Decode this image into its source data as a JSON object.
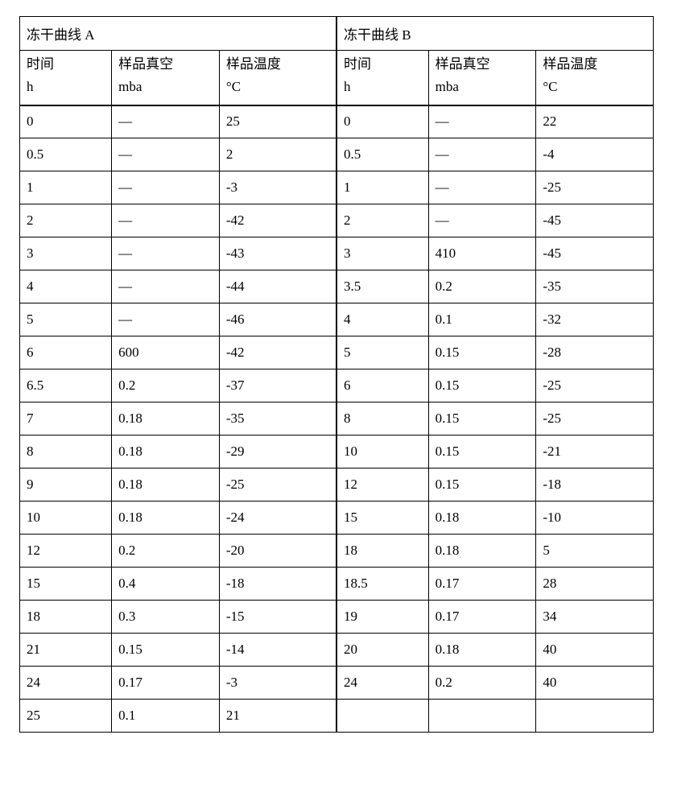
{
  "table": {
    "sectionA": {
      "title": "冻干曲线 A"
    },
    "sectionB": {
      "title": "冻干曲线 B"
    },
    "headers": {
      "time_label": "时间",
      "time_unit": "h",
      "vacuum_label": "样品真空",
      "vacuum_unit": "mba",
      "temp_label": "样品温度",
      "temp_unit": "°C"
    },
    "rows": [
      {
        "a_time": "0",
        "a_vac": "—",
        "a_temp": "25",
        "b_time": "0",
        "b_vac": "—",
        "b_temp": "22"
      },
      {
        "a_time": "0.5",
        "a_vac": "—",
        "a_temp": "2",
        "b_time": "0.5",
        "b_vac": "—",
        "b_temp": "-4"
      },
      {
        "a_time": "1",
        "a_vac": "—",
        "a_temp": "-3",
        "b_time": "1",
        "b_vac": "—",
        "b_temp": "-25"
      },
      {
        "a_time": "2",
        "a_vac": "—",
        "a_temp": "-42",
        "b_time": "2",
        "b_vac": "—",
        "b_temp": "-45"
      },
      {
        "a_time": "3",
        "a_vac": "—",
        "a_temp": "-43",
        "b_time": "3",
        "b_vac": "410",
        "b_temp": "-45"
      },
      {
        "a_time": "4",
        "a_vac": "—",
        "a_temp": "-44",
        "b_time": "3.5",
        "b_vac": "0.2",
        "b_temp": "-35"
      },
      {
        "a_time": "5",
        "a_vac": "—",
        "a_temp": "-46",
        "b_time": "4",
        "b_vac": "0.1",
        "b_temp": "-32"
      },
      {
        "a_time": "6",
        "a_vac": "600",
        "a_temp": "-42",
        "b_time": "5",
        "b_vac": "0.15",
        "b_temp": "-28"
      },
      {
        "a_time": "6.5",
        "a_vac": "0.2",
        "a_temp": "-37",
        "b_time": "6",
        "b_vac": "0.15",
        "b_temp": "-25"
      },
      {
        "a_time": "7",
        "a_vac": "0.18",
        "a_temp": "-35",
        "b_time": "8",
        "b_vac": "0.15",
        "b_temp": "-25"
      },
      {
        "a_time": "8",
        "a_vac": "0.18",
        "a_temp": "-29",
        "b_time": "10",
        "b_vac": "0.15",
        "b_temp": "-21"
      },
      {
        "a_time": "9",
        "a_vac": "0.18",
        "a_temp": "-25",
        "b_time": "12",
        "b_vac": "0.15",
        "b_temp": "-18"
      },
      {
        "a_time": "10",
        "a_vac": "0.18",
        "a_temp": "-24",
        "b_time": "15",
        "b_vac": "0.18",
        "b_temp": "-10"
      },
      {
        "a_time": "12",
        "a_vac": "0.2",
        "a_temp": "-20",
        "b_time": "18",
        "b_vac": "0.18",
        "b_temp": "5"
      },
      {
        "a_time": "15",
        "a_vac": "0.4",
        "a_temp": "-18",
        "b_time": "18.5",
        "b_vac": "0.17",
        "b_temp": "28"
      },
      {
        "a_time": "18",
        "a_vac": "0.3",
        "a_temp": "-15",
        "b_time": "19",
        "b_vac": "0.17",
        "b_temp": "34"
      },
      {
        "a_time": "21",
        "a_vac": "0.15",
        "a_temp": "-14",
        "b_time": "20",
        "b_vac": "0.18",
        "b_temp": "40"
      },
      {
        "a_time": "24",
        "a_vac": "0.17",
        "a_temp": "-3",
        "b_time": "24",
        "b_vac": "0.2",
        "b_temp": "40"
      },
      {
        "a_time": "25",
        "a_vac": "0.1",
        "a_temp": "21",
        "b_time": "",
        "b_vac": "",
        "b_temp": ""
      }
    ]
  },
  "style": {
    "font_family": "SimSun",
    "font_size_pt": 13,
    "text_color": "#000000",
    "border_color": "#000000",
    "background_color": "#ffffff",
    "col_widths_pct": [
      14.5,
      17,
      18.5,
      14.5,
      17,
      18.5
    ]
  }
}
